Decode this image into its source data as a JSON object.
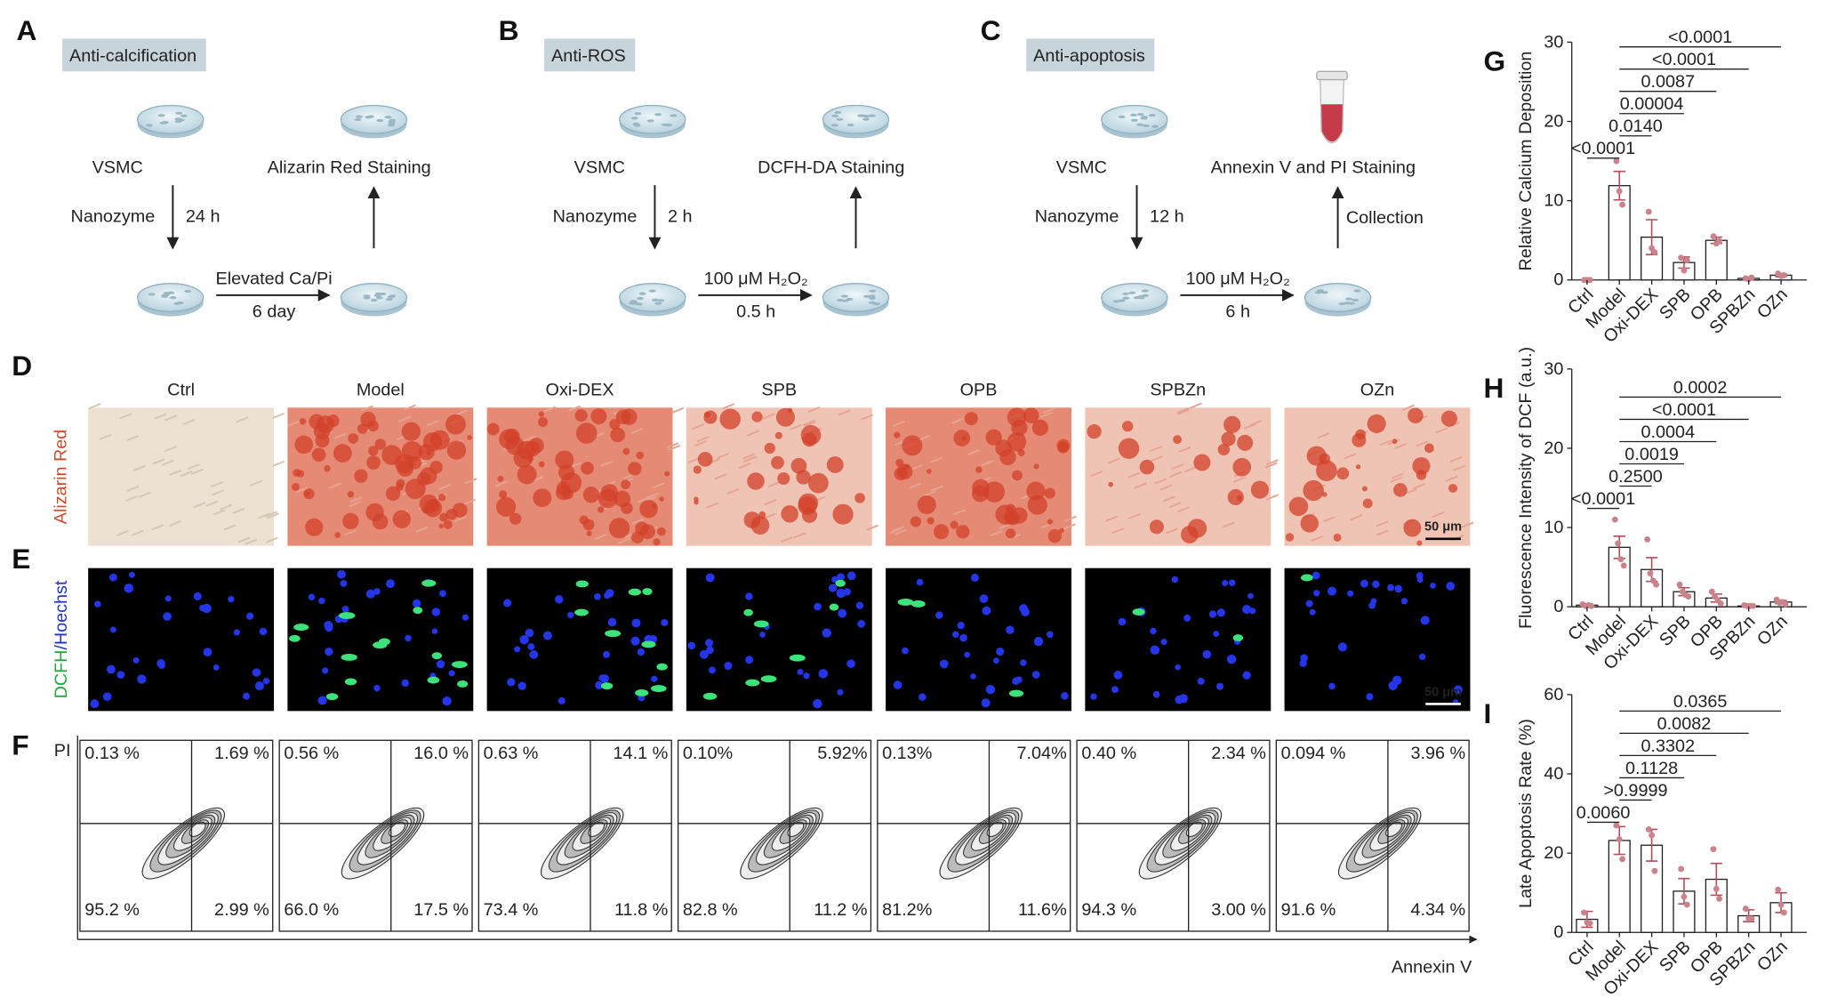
{
  "workflows": [
    {
      "letter": "A",
      "title": "Anti-calcification",
      "cells": "VSMC",
      "readout": "Alizarin Red Staining",
      "treatment": "Nanozyme",
      "treatment_time": "24 h",
      "stimulus": "Elevated Ca/Pi",
      "stimulus_time": "6 day"
    },
    {
      "letter": "B",
      "title": "Anti-ROS",
      "cells": "VSMC",
      "readout": "DCFH-DA Staining",
      "treatment": "Nanozyme",
      "treatment_time": "2 h",
      "stimulus": "100 μM H₂O₂",
      "stimulus_time": "0.5 h"
    },
    {
      "letter": "C",
      "title": "Anti-apoptosis",
      "cells": "VSMC",
      "readout": "Annexin V and PI Staining",
      "treatment": "Nanozyme",
      "treatment_time": "12 h",
      "stimulus": "100 μM H₂O₂",
      "stimulus_time": "6 h",
      "final_step": "Collection"
    }
  ],
  "imaging": {
    "groups": [
      "Ctrl",
      "Model",
      "Oxi-DEX",
      "SPB",
      "OPB",
      "SPBZn",
      "OZn"
    ],
    "rows": [
      {
        "letter": "D",
        "label_parts": [
          "Alizarin Red"
        ],
        "scale_bar": "50 μm"
      },
      {
        "letter": "E",
        "label_parts": [
          "DCFH",
          "/Hoechst"
        ],
        "scale_bar": "50 μm"
      }
    ]
  },
  "flow": {
    "letter": "F",
    "y_label": "PI",
    "x_label": "Annexin V",
    "quadrants": [
      [
        "0.13 %",
        "1.69 %",
        "95.2 %",
        "2.99 %"
      ],
      [
        "0.56 %",
        "16.0 %",
        "66.0 %",
        "17.5 %"
      ],
      [
        "0.63 %",
        "14.1 %",
        "73.4 %",
        "11.8 %"
      ],
      [
        "0.10%",
        "5.92%",
        "82.8 %",
        "11.2 %"
      ],
      [
        "0.13%",
        "7.04%",
        "81.2%",
        "11.6%"
      ],
      [
        "0.40 %",
        "2.34 %",
        "94.3 %",
        "3.00 %"
      ],
      [
        "0.094 %",
        "3.96 %",
        "91.6 %",
        "4.34 %"
      ]
    ]
  },
  "chart_data": [
    {
      "type": "bar",
      "panel": "G",
      "y_label": "Relative Calcium Deposition",
      "categories": [
        "Ctrl",
        "Model",
        "Oxi-DEX",
        "SPB",
        "OPB",
        "SPBZn",
        "OZn"
      ],
      "values": [
        0,
        11.9,
        5.4,
        2.2,
        5.0,
        0.2,
        0.6
      ],
      "errors": [
        0.05,
        1.8,
        2.2,
        0.7,
        0.4,
        0.1,
        0.2
      ],
      "points": [
        [
          0,
          0,
          0
        ],
        [
          15.0,
          11.2,
          9.5
        ],
        [
          8.6,
          4.0,
          3.5
        ],
        [
          2.8,
          1.2,
          2.5
        ],
        [
          5.5,
          4.6,
          4.9
        ],
        [
          0.2,
          0.1,
          0.3
        ],
        [
          0.8,
          0.5,
          0.6
        ]
      ],
      "bar_color": "#ffffff",
      "point_color": "#c9848b",
      "ylim": [
        0,
        30
      ],
      "yticks": [
        0,
        10,
        20,
        30
      ],
      "comparisons": [
        {
          "groups": [
            "Ctrl",
            "Model"
          ],
          "label": "<0.0001"
        },
        {
          "groups": [
            "Model",
            "Oxi-DEX"
          ],
          "label": "0.0140"
        },
        {
          "groups": [
            "Model",
            "SPB"
          ],
          "label": "0.00004"
        },
        {
          "groups": [
            "Model",
            "OPB"
          ],
          "label": "0.0087"
        },
        {
          "groups": [
            "Model",
            "SPBZn"
          ],
          "label": "<0.0001"
        },
        {
          "groups": [
            "Model",
            "OZn"
          ],
          "label": "<0.0001"
        }
      ]
    },
    {
      "type": "bar",
      "panel": "H",
      "y_label": "Fluorescence Intensity of DCF (a.u.)",
      "categories": [
        "Ctrl",
        "Model",
        "Oxi-DEX",
        "SPB",
        "OPB",
        "SPBZn",
        "OZn"
      ],
      "values": [
        0.2,
        7.5,
        4.7,
        1.9,
        1.1,
        0.1,
        0.6
      ],
      "errors": [
        0.1,
        1.4,
        1.5,
        0.5,
        0.5,
        0.1,
        0.2
      ],
      "points": [
        [
          0.3,
          0.1,
          0.2,
          0.1
        ],
        [
          11.0,
          8.0,
          6.0,
          5.2
        ],
        [
          8.5,
          4.2,
          3.3,
          2.8
        ],
        [
          2.8,
          1.9,
          1.5,
          1.3
        ],
        [
          1.9,
          1.3,
          0.8,
          0.4
        ],
        [
          0.2,
          0.1,
          0.1,
          0.1
        ],
        [
          0.9,
          0.5,
          0.6,
          0.3
        ]
      ],
      "bar_color": "#ffffff",
      "point_color": "#c9848b",
      "ylim": [
        0,
        30
      ],
      "yticks": [
        0,
        10,
        20,
        30
      ],
      "comparisons": [
        {
          "groups": [
            "Ctrl",
            "Model"
          ],
          "label": "<0.0001"
        },
        {
          "groups": [
            "Model",
            "Oxi-DEX"
          ],
          "label": "0.2500"
        },
        {
          "groups": [
            "Model",
            "SPB"
          ],
          "label": "0.0019"
        },
        {
          "groups": [
            "Model",
            "OPB"
          ],
          "label": "0.0004"
        },
        {
          "groups": [
            "Model",
            "SPBZn"
          ],
          "label": "<0.0001"
        },
        {
          "groups": [
            "Model",
            "OZn"
          ],
          "label": "0.0002"
        }
      ]
    },
    {
      "type": "bar",
      "panel": "I",
      "y_label": "Late Apoptosis Rate (%)",
      "categories": [
        "Ctrl",
        "Model",
        "Oxi-DEX",
        "SPB",
        "OPB",
        "SPBZn",
        "OZn"
      ],
      "values": [
        3.3,
        23.2,
        22.0,
        10.4,
        13.4,
        4.2,
        7.5
      ],
      "errors": [
        2.0,
        3.5,
        4.0,
        3.2,
        4.0,
        1.5,
        2.5
      ],
      "points": [
        [
          5.0,
          2.5,
          2.3
        ],
        [
          27.0,
          23.5,
          18.5
        ],
        [
          26.0,
          24.5,
          15.5
        ],
        [
          16.0,
          9.0,
          7.0
        ],
        [
          21.0,
          11.0,
          8.5
        ],
        [
          6.0,
          3.5,
          3.5
        ],
        [
          10.8,
          7.0,
          5.0
        ]
      ],
      "bar_color": "#ffffff",
      "point_color": "#c9848b",
      "ylim": [
        0,
        60
      ],
      "yticks": [
        0,
        20,
        40,
        60
      ],
      "comparisons": [
        {
          "groups": [
            "Ctrl",
            "Model"
          ],
          "label": "0.0060"
        },
        {
          "groups": [
            "Model",
            "Oxi-DEX"
          ],
          "label": ">0.9999"
        },
        {
          "groups": [
            "Model",
            "SPB"
          ],
          "label": "0.1128"
        },
        {
          "groups": [
            "Model",
            "OPB"
          ],
          "label": "0.3302"
        },
        {
          "groups": [
            "Model",
            "SPBZn"
          ],
          "label": "0.0082"
        },
        {
          "groups": [
            "Model",
            "OZn"
          ],
          "label": "0.0365"
        }
      ]
    }
  ]
}
